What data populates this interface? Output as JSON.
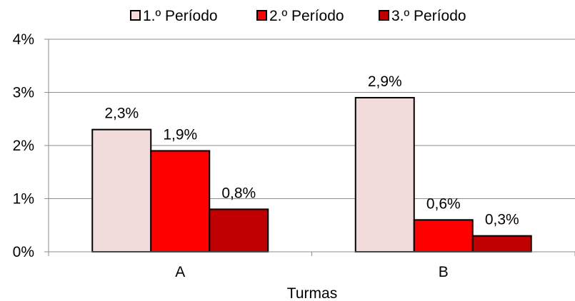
{
  "chart_data": {
    "type": "bar",
    "categories": [
      "A",
      "B"
    ],
    "series": [
      {
        "name": "1.º Período",
        "values": [
          2.3,
          2.9
        ],
        "labels": [
          "2,3%",
          "2,9%"
        ],
        "color": "#f2dcdb"
      },
      {
        "name": "2.º Período",
        "values": [
          1.9,
          0.6
        ],
        "labels": [
          "1,9%",
          "0,6%"
        ],
        "color": "#ff0000"
      },
      {
        "name": "3.º Período",
        "values": [
          0.8,
          0.3
        ],
        "labels": [
          "0,8%",
          "0,3%"
        ],
        "color": "#c00000"
      }
    ],
    "xlabel": "Turmas",
    "ylabel": "",
    "ylim": [
      0,
      4
    ],
    "yticks": [
      0,
      1,
      2,
      3,
      4
    ],
    "ytick_labels": [
      "0%",
      "1%",
      "2%",
      "3%",
      "4%"
    ],
    "grid": true,
    "legend_position": "top"
  }
}
